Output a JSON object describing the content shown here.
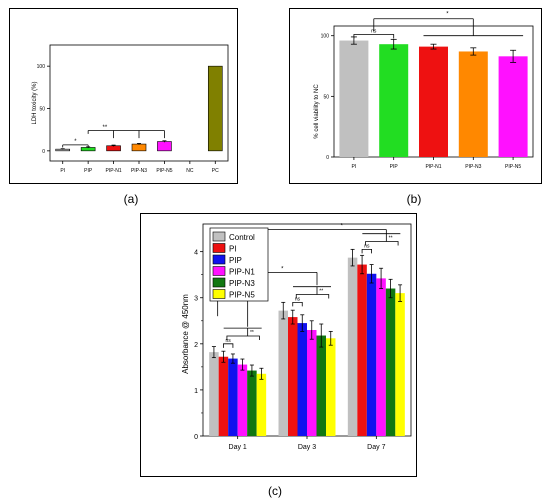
{
  "panel_labels": {
    "a": "(a)",
    "b": "(b)",
    "c": "(c)"
  },
  "chart_data": [
    {
      "id": "a",
      "type": "bar",
      "ylabel": "LDH toxicity (%)",
      "ylim": [
        -12,
        125
      ],
      "yticks": [
        "0",
        "50",
        "100"
      ],
      "categories": [
        "PI",
        "PIP",
        "PIP-N1",
        "PIP-N3",
        "PIP-N5",
        "NC",
        "PC"
      ],
      "values": [
        2,
        4,
        6,
        8,
        11,
        0,
        100
      ],
      "errors": [
        0.5,
        0.7,
        0.8,
        0.8,
        0.9,
        0,
        0
      ],
      "colors": [
        "#c0c0c0",
        "#22dd22",
        "#ee1111",
        "#ff8800",
        "#ff11ff",
        "#ffffff",
        "#808000"
      ],
      "annotations": [
        "*",
        "**"
      ]
    },
    {
      "id": "b",
      "type": "bar",
      "ylabel": "% cell viability to NC",
      "ylim": [
        0,
        108
      ],
      "yticks": [
        "0",
        "50",
        "100"
      ],
      "categories": [
        "PI",
        "PIP",
        "PIP-N1",
        "PIP-N3",
        "PIP-N5"
      ],
      "values": [
        96,
        93,
        91,
        87,
        83
      ],
      "errors": [
        3,
        4,
        2,
        3,
        5
      ],
      "colors": [
        "#c0c0c0",
        "#22dd22",
        "#ee1111",
        "#ff8800",
        "#ff11ff"
      ],
      "annotations": [
        "ns",
        "*"
      ]
    },
    {
      "id": "c",
      "type": "bar",
      "ylabel": "Absorbance @ 450nm",
      "ylim": [
        0,
        4.6
      ],
      "yticks": [
        "0",
        "1",
        "2",
        "3",
        "4"
      ],
      "categories": [
        "Day 1",
        "Day 3",
        "Day 7"
      ],
      "series": [
        {
          "name": "Control",
          "color": "#c0c0c0",
          "values": [
            1.82,
            2.72,
            3.87
          ],
          "errors": [
            0.12,
            0.18,
            0.18
          ]
        },
        {
          "name": "PI",
          "color": "#ee1111",
          "values": [
            1.72,
            2.58,
            3.72
          ],
          "errors": [
            0.12,
            0.15,
            0.2
          ]
        },
        {
          "name": "PIP",
          "color": "#1111ee",
          "values": [
            1.68,
            2.45,
            3.52
          ],
          "errors": [
            0.1,
            0.18,
            0.2
          ]
        },
        {
          "name": "PIP-N1",
          "color": "#ff11ff",
          "values": [
            1.55,
            2.3,
            3.42
          ],
          "errors": [
            0.12,
            0.2,
            0.22
          ]
        },
        {
          "name": "PIP-N3",
          "color": "#117711",
          "values": [
            1.42,
            2.18,
            3.2
          ],
          "errors": [
            0.12,
            0.25,
            0.2
          ]
        },
        {
          "name": "PIP-N5",
          "color": "#ffff00",
          "values": [
            1.35,
            2.12,
            3.1
          ],
          "errors": [
            0.12,
            0.15,
            0.18
          ]
        }
      ],
      "annotations": [
        "ns",
        "**",
        "*"
      ]
    }
  ]
}
